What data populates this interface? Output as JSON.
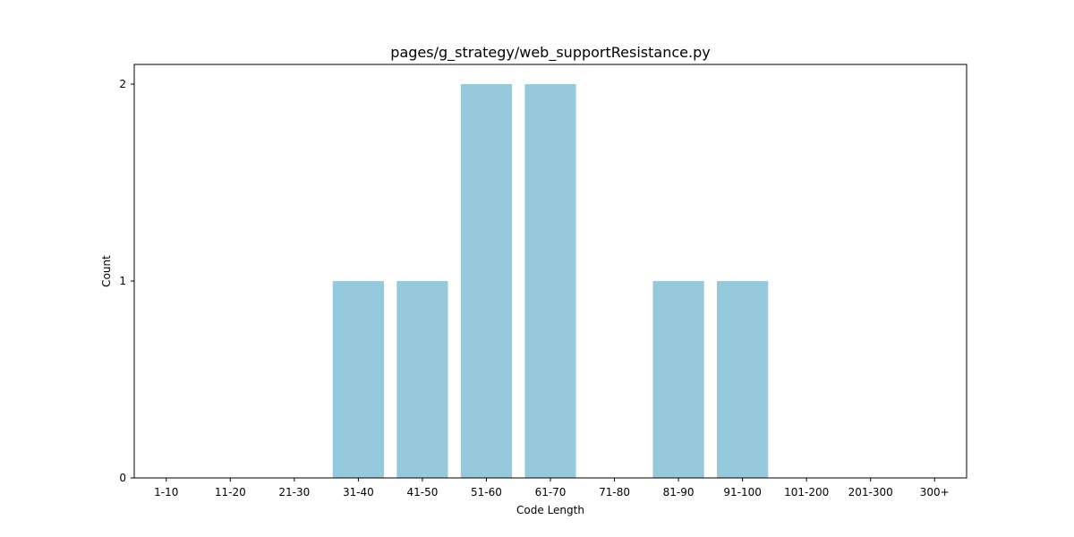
{
  "chart_data": {
    "type": "bar",
    "title": "pages/g_strategy/web_supportResistance.py",
    "xlabel": "Code Length",
    "ylabel": "Count",
    "categories": [
      "1-10",
      "11-20",
      "21-30",
      "31-40",
      "41-50",
      "51-60",
      "61-70",
      "71-80",
      "81-90",
      "91-100",
      "101-200",
      "201-300",
      "300+"
    ],
    "values": [
      0,
      0,
      0,
      1,
      1,
      2,
      2,
      0,
      1,
      1,
      0,
      0,
      0
    ],
    "yticks": [
      0,
      1,
      2
    ],
    "ylim": [
      0,
      2.1
    ],
    "grid": false,
    "legend": "none",
    "bar_color": "#96c9dc"
  }
}
